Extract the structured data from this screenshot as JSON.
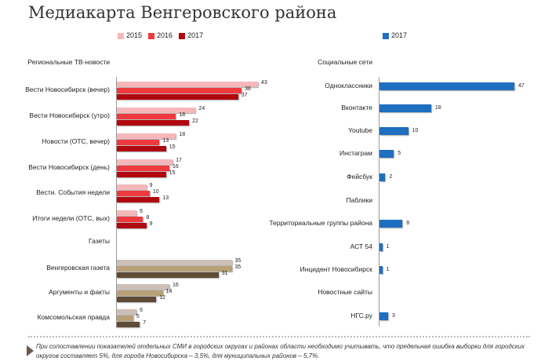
{
  "title": "Медиакарта Венгеровского района",
  "chart_data": [
    {
      "type": "bar",
      "orientation": "horizontal",
      "series_names": [
        "2015",
        "2016",
        "2017"
      ],
      "colors": {
        "tv": [
          "#f5b7b9",
          "#ee3a3e",
          "#b0080f"
        ],
        "press": [
          "#cbbfb7",
          "#b8a077",
          "#5e4b36"
        ]
      },
      "rows": [
        {
          "label": "Региональные ТВ-новости",
          "heading": true
        },
        {
          "label": "Вести Новосибирск (вечер)",
          "values": [
            43,
            38,
            37
          ],
          "group": "tv"
        },
        {
          "label": "Вести Новосибирск (утро)",
          "values": [
            24,
            18,
            22
          ],
          "group": "tv"
        },
        {
          "label": "Новости (ОТС, вечер)",
          "values": [
            18,
            13,
            15
          ],
          "group": "tv"
        },
        {
          "label": "Вести Новосибирск (день)",
          "values": [
            17,
            16,
            15
          ],
          "group": "tv"
        },
        {
          "label": "Вести. События недели",
          "values": [
            9,
            10,
            13
          ],
          "group": "tv"
        },
        {
          "label": "Итоги недели (ОТС, вых)",
          "values": [
            6,
            8,
            9
          ],
          "group": "tv"
        },
        {
          "label": "Газеты",
          "heading": true
        },
        {
          "label": "Венгеровская газета",
          "values": [
            35,
            35,
            31
          ],
          "group": "press"
        },
        {
          "label": "Аргументы и факты",
          "values": [
            16,
            14,
            12
          ],
          "group": "press"
        },
        {
          "label": "Комсомольская правда",
          "values": [
            6,
            5,
            7
          ],
          "group": "press"
        }
      ],
      "xlim": [
        0,
        45
      ]
    },
    {
      "type": "bar",
      "orientation": "horizontal",
      "series_names": [
        "2017"
      ],
      "color": "#1f6fc1",
      "rows": [
        {
          "label": "Социальные сети",
          "heading": true
        },
        {
          "label": "Одноклассники",
          "value": 47
        },
        {
          "label": "Вконтакте",
          "value": 18
        },
        {
          "label": "Youtube",
          "value": 10
        },
        {
          "label": "Инстаграм",
          "value": 5
        },
        {
          "label": "Фейсбук",
          "value": 2
        },
        {
          "label": "Паблики",
          "heading": true
        },
        {
          "label": "Территориальные группы района",
          "value": 8
        },
        {
          "label": "АСТ 54",
          "value": 1
        },
        {
          "label": "Инцидент Новосибирск",
          "value": 1
        },
        {
          "label": "Новостные сайты",
          "heading": true
        },
        {
          "label": "НГС.ру",
          "value": 3
        }
      ],
      "xlim": [
        0,
        47
      ]
    }
  ],
  "note": "При сопоставлении показателей отдельных СМИ в городских округах и районах области необходимо учитывать, что предельная ошибка выборки для городских округов составляет 5%, для города Новосибирска – 3,5%, для муниципальных районов – 5,7%."
}
